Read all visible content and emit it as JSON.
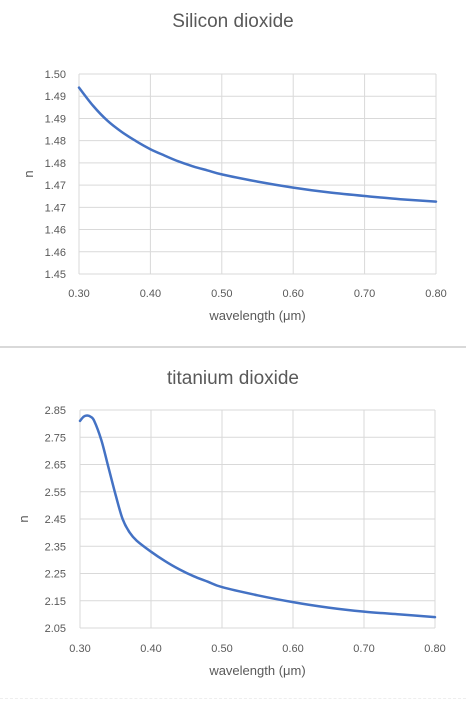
{
  "chart_data": [
    {
      "type": "line",
      "title": "Silicon dioxide",
      "xlabel": "wavelength (μm)",
      "ylabel": "n",
      "xlim": [
        0.3,
        0.8
      ],
      "ylim": [
        1.45,
        1.5
      ],
      "x_ticks": [
        "0.30",
        "0.40",
        "0.50",
        "0.60",
        "0.70",
        "0.80"
      ],
      "y_ticks": [
        "1.45",
        "1.46",
        "1.46",
        "1.47",
        "1.47",
        "1.48",
        "1.48",
        "1.49",
        "1.49",
        "1.50"
      ],
      "grid": true,
      "color": "#4472c4",
      "series": [
        {
          "x": [
            0.3,
            0.32,
            0.34,
            0.36,
            0.38,
            0.4,
            0.42,
            0.44,
            0.46,
            0.48,
            0.5,
            0.55,
            0.6,
            0.65,
            0.7,
            0.75,
            0.8
          ],
          "values": [
            1.4966,
            1.492,
            1.4883,
            1.4855,
            1.4832,
            1.4812,
            1.4796,
            1.4781,
            1.4769,
            1.4759,
            1.4749,
            1.4731,
            1.4716,
            1.4704,
            1.4695,
            1.4687,
            1.4681
          ]
        }
      ]
    },
    {
      "type": "line",
      "title": "titanium dioxide",
      "xlabel": "wavelength (μm)",
      "ylabel": "n",
      "xlim": [
        0.3,
        0.8
      ],
      "ylim": [
        2.05,
        2.85
      ],
      "x_ticks": [
        "0.30",
        "0.40",
        "0.50",
        "0.60",
        "0.70",
        "0.80"
      ],
      "y_ticks": [
        "2.05",
        "2.15",
        "2.25",
        "2.35",
        "2.45",
        "2.55",
        "2.65",
        "2.75",
        "2.85"
      ],
      "grid": true,
      "color": "#4472c4",
      "series": [
        {
          "x": [
            0.3,
            0.305,
            0.31,
            0.315,
            0.32,
            0.33,
            0.34,
            0.35,
            0.36,
            0.37,
            0.38,
            0.4,
            0.42,
            0.44,
            0.46,
            0.48,
            0.5,
            0.55,
            0.6,
            0.65,
            0.7,
            0.75,
            0.8
          ],
          "values": [
            2.81,
            2.825,
            2.83,
            2.825,
            2.81,
            2.74,
            2.64,
            2.54,
            2.45,
            2.4,
            2.37,
            2.33,
            2.295,
            2.265,
            2.24,
            2.22,
            2.2,
            2.17,
            2.145,
            2.125,
            2.11,
            2.1,
            2.09
          ]
        }
      ]
    }
  ]
}
